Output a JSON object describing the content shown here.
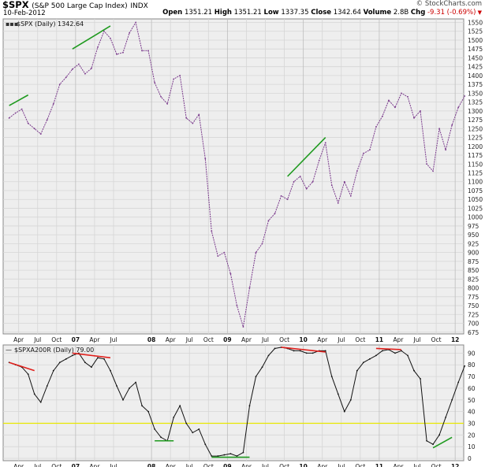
{
  "header": {
    "symbol": "$SPX",
    "name": "(S&P 500 Large Cap Index)",
    "exchange": "INDX",
    "date": "10-Feb-2012",
    "copyright": "© StockCharts.com",
    "open_label": "Open",
    "open": "1351.21",
    "high_label": "High",
    "high": "1351.21",
    "low_label": "Low",
    "low": "1337.35",
    "close_label": "Close",
    "close": "1342.64",
    "volume_label": "Volume",
    "volume": "2.8B",
    "chg_label": "Chg",
    "chg": "-9.31 (-0.69%)"
  },
  "colors": {
    "panel_bg": "#eeeeee",
    "grid": "#d6d6d6",
    "price_line": "#7a3a8c",
    "indicator_line": "#111111",
    "trend_green": "#1f9a1f",
    "trend_red": "#e0201c",
    "threshold": "#e8e800",
    "neg": "#cc0000"
  },
  "chart_data": [
    {
      "type": "line",
      "legend": "$SPX (Daily) 1342.64",
      "ylim": [
        670,
        1560
      ],
      "y_ticks": [
        675,
        700,
        725,
        750,
        775,
        800,
        825,
        850,
        875,
        900,
        925,
        950,
        975,
        1000,
        1025,
        1050,
        1075,
        1100,
        1125,
        1150,
        1175,
        1200,
        1225,
        1250,
        1275,
        1300,
        1325,
        1350,
        1375,
        1400,
        1425,
        1450,
        1475,
        1500,
        1525,
        1550
      ],
      "x_ticks": [
        "Apr",
        "Jul",
        "Oct",
        "07",
        "Apr",
        "Jul",
        "08",
        "Apr",
        "Jul",
        "Oct",
        "09",
        "Apr",
        "Jul",
        "Oct",
        "10",
        "Apr",
        "Jul",
        "Oct",
        "11",
        "Apr",
        "Jul",
        "Oct",
        "12"
      ],
      "series": [
        {
          "name": "$SPX (Daily)",
          "x": [
            "2006-02",
            "2006-03",
            "2006-04",
            "2006-05",
            "2006-06",
            "2006-07",
            "2006-08",
            "2006-09",
            "2006-10",
            "2006-11",
            "2006-12",
            "2007-01",
            "2007-02",
            "2007-03",
            "2007-04",
            "2007-05",
            "2007-06",
            "2007-07",
            "2007-08",
            "2007-09",
            "2007-10",
            "2007-11",
            "2007-12",
            "2008-01",
            "2008-02",
            "2008-03",
            "2008-04",
            "2008-05",
            "2008-06",
            "2008-07",
            "2008-08",
            "2008-09",
            "2008-10",
            "2008-11",
            "2008-12",
            "2009-01",
            "2009-02",
            "2009-03",
            "2009-04",
            "2009-05",
            "2009-06",
            "2009-07",
            "2009-08",
            "2009-09",
            "2009-10",
            "2009-11",
            "2009-12",
            "2010-01",
            "2010-02",
            "2010-03",
            "2010-04",
            "2010-05",
            "2010-06",
            "2010-07",
            "2010-08",
            "2010-09",
            "2010-10",
            "2010-11",
            "2010-12",
            "2011-01",
            "2011-02",
            "2011-03",
            "2011-04",
            "2011-05",
            "2011-06",
            "2011-07",
            "2011-08",
            "2011-09",
            "2011-10",
            "2011-11",
            "2011-12",
            "2012-01",
            "2012-02"
          ],
          "values": [
            1280,
            1294,
            1305,
            1265,
            1250,
            1235,
            1275,
            1320,
            1375,
            1395,
            1418,
            1432,
            1405,
            1420,
            1480,
            1525,
            1505,
            1460,
            1465,
            1520,
            1550,
            1470,
            1470,
            1380,
            1340,
            1320,
            1390,
            1400,
            1280,
            1265,
            1290,
            1165,
            960,
            890,
            900,
            840,
            750,
            690,
            800,
            900,
            925,
            990,
            1010,
            1060,
            1050,
            1100,
            1115,
            1080,
            1100,
            1160,
            1210,
            1090,
            1040,
            1100,
            1060,
            1130,
            1180,
            1190,
            1255,
            1285,
            1330,
            1310,
            1350,
            1340,
            1280,
            1300,
            1150,
            1130,
            1250,
            1190,
            1260,
            1310,
            1342
          ]
        }
      ],
      "trendlines_green": [
        [
          [
            "2006-02",
            1315
          ],
          [
            "2006-05",
            1345
          ]
        ],
        [
          [
            "2006-12",
            1475
          ],
          [
            "2007-06",
            1540
          ]
        ],
        [
          [
            "2009-10",
            1115
          ],
          [
            "2010-04",
            1225
          ]
        ]
      ]
    },
    {
      "type": "line",
      "legend": "$SPXA200R (Daily) 79.00",
      "ylim": [
        -2,
        97
      ],
      "y_ticks": [
        0,
        10,
        20,
        30,
        40,
        50,
        60,
        70,
        80,
        90
      ],
      "threshold": 30,
      "x_ticks": [
        "Apr",
        "Jul",
        "Oct",
        "07",
        "Apr",
        "Jul",
        "08",
        "Apr",
        "Jul",
        "Oct",
        "09",
        "Apr",
        "Jul",
        "Oct",
        "10",
        "Apr",
        "Jul",
        "Oct",
        "11",
        "Apr",
        "Jul",
        "Oct",
        "12"
      ],
      "series": [
        {
          "name": "$SPXA200R (Daily)",
          "x": [
            "2006-02",
            "2006-03",
            "2006-04",
            "2006-05",
            "2006-06",
            "2006-07",
            "2006-08",
            "2006-09",
            "2006-10",
            "2006-11",
            "2006-12",
            "2007-01",
            "2007-02",
            "2007-03",
            "2007-04",
            "2007-05",
            "2007-06",
            "2007-07",
            "2007-08",
            "2007-09",
            "2007-10",
            "2007-11",
            "2007-12",
            "2008-01",
            "2008-02",
            "2008-03",
            "2008-04",
            "2008-05",
            "2008-06",
            "2008-07",
            "2008-08",
            "2008-09",
            "2008-10",
            "2008-11",
            "2008-12",
            "2009-01",
            "2009-02",
            "2009-03",
            "2009-04",
            "2009-05",
            "2009-06",
            "2009-07",
            "2009-08",
            "2009-09",
            "2009-10",
            "2009-11",
            "2009-12",
            "2010-01",
            "2010-02",
            "2010-03",
            "2010-04",
            "2010-05",
            "2010-06",
            "2010-07",
            "2010-08",
            "2010-09",
            "2010-10",
            "2010-11",
            "2010-12",
            "2011-01",
            "2011-02",
            "2011-03",
            "2011-04",
            "2011-05",
            "2011-06",
            "2011-07",
            "2011-08",
            "2011-09",
            "2011-10",
            "2011-11",
            "2011-12",
            "2012-01",
            "2012-02"
          ],
          "values": [
            82,
            80,
            78,
            72,
            55,
            48,
            62,
            75,
            82,
            85,
            88,
            90,
            82,
            78,
            86,
            85,
            75,
            62,
            50,
            60,
            65,
            45,
            40,
            25,
            18,
            15,
            35,
            45,
            30,
            22,
            25,
            12,
            2,
            2,
            3,
            4,
            2,
            5,
            45,
            70,
            78,
            88,
            94,
            95,
            94,
            92,
            92,
            90,
            90,
            92,
            92,
            70,
            55,
            40,
            50,
            75,
            82,
            85,
            88,
            92,
            93,
            90,
            92,
            88,
            75,
            68,
            15,
            12,
            20,
            35,
            50,
            65,
            79
          ]
        }
      ],
      "trendlines_red": [
        [
          [
            "2006-02",
            82
          ],
          [
            "2006-06",
            75
          ]
        ],
        [
          [
            "2006-12",
            90
          ],
          [
            "2007-06",
            86
          ]
        ],
        [
          [
            "2009-09",
            95
          ],
          [
            "2010-04",
            91
          ]
        ],
        [
          [
            "2010-12",
            94
          ],
          [
            "2011-04",
            93
          ]
        ]
      ],
      "trendlines_green": [
        [
          [
            "2008-01",
            15
          ],
          [
            "2008-04",
            15
          ]
        ],
        [
          [
            "2008-10",
            1
          ],
          [
            "2009-04",
            1
          ]
        ],
        [
          [
            "2011-09",
            9
          ],
          [
            "2011-12",
            18
          ]
        ]
      ]
    }
  ]
}
